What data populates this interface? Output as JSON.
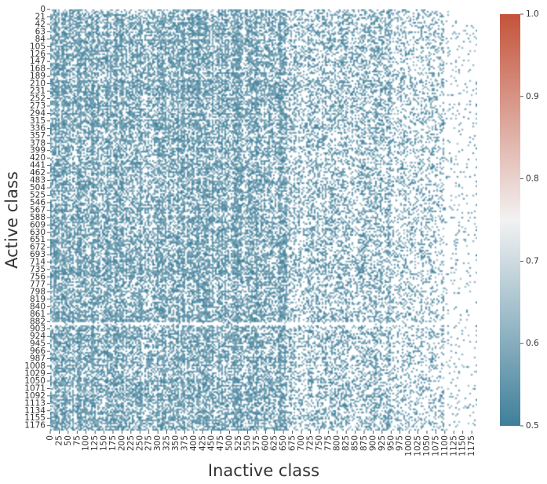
{
  "chart_data": {
    "type": "heatmap",
    "xlabel": "Inactive class",
    "ylabel": "Active class",
    "x_ticks": [
      "0",
      "25",
      "50",
      "75",
      "100",
      "125",
      "150",
      "175",
      "200",
      "225",
      "250",
      "275",
      "300",
      "325",
      "350",
      "375",
      "400",
      "425",
      "450",
      "475",
      "500",
      "525",
      "550",
      "575",
      "600",
      "625",
      "650",
      "675",
      "700",
      "725",
      "750",
      "775",
      "800",
      "825",
      "850",
      "875",
      "900",
      "925",
      "950",
      "975",
      "1000",
      "1025",
      "1050",
      "1075",
      "1100",
      "1125",
      "1150",
      "1175"
    ],
    "y_ticks": [
      "0",
      "21",
      "42",
      "63",
      "84",
      "105",
      "126",
      "147",
      "168",
      "189",
      "210",
      "231",
      "252",
      "273",
      "294",
      "315",
      "336",
      "357",
      "378",
      "399",
      "420",
      "441",
      "462",
      "483",
      "504",
      "525",
      "546",
      "567",
      "588",
      "609",
      "630",
      "651",
      "672",
      "693",
      "714",
      "735",
      "756",
      "777",
      "798",
      "819",
      "840",
      "861",
      "882",
      "903",
      "924",
      "945",
      "966",
      "987",
      "1008",
      "1029",
      "1050",
      "1071",
      "1092",
      "1113",
      "1134",
      "1155",
      "1176"
    ],
    "x_range": [
      0,
      1190
    ],
    "y_range": [
      0,
      1190
    ],
    "colorbar": {
      "min": 0.5,
      "max": 1.0,
      "ticks": [
        "0.5",
        "0.6",
        "0.7",
        "0.8",
        "0.9",
        "1.0"
      ],
      "low_color": "#3f7f9a",
      "mid_color": "#f2f2f2",
      "high_color": "#c4533a"
    },
    "missing_color": "#ffffff",
    "dominant_value_range": [
      0.5,
      0.62
    ]
  }
}
